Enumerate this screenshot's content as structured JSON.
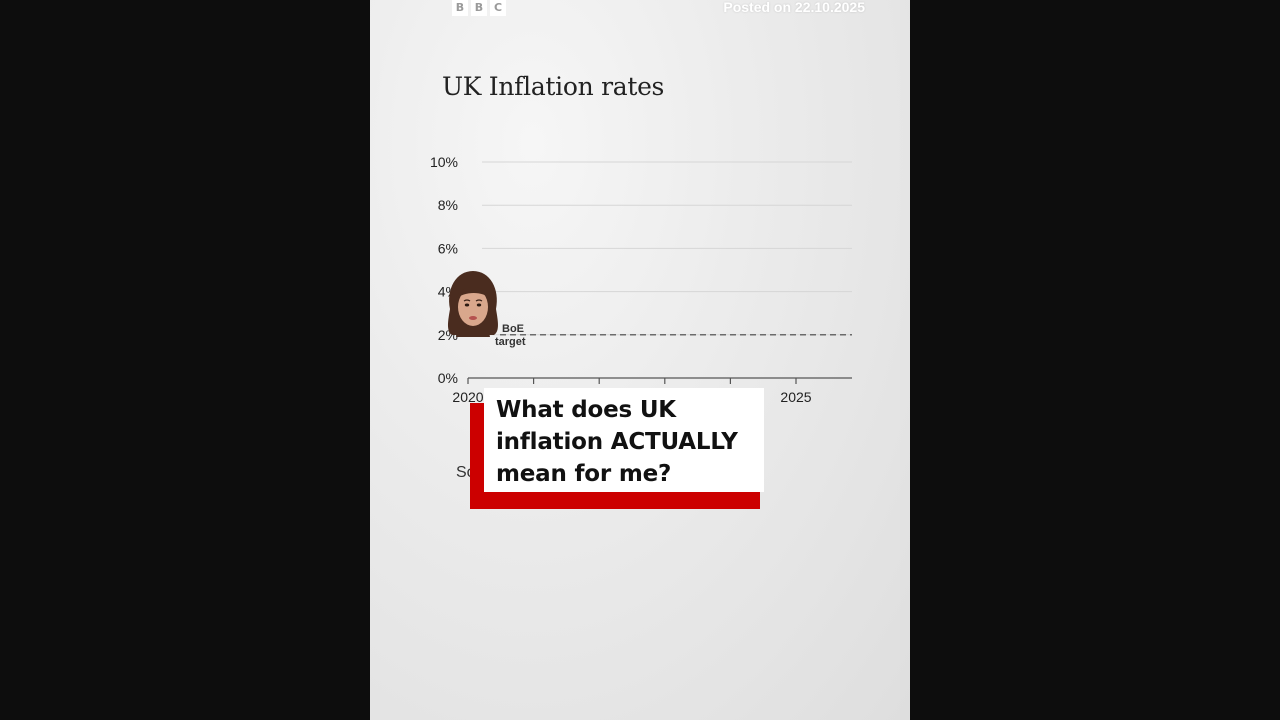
{
  "brand": {
    "logo_letters": [
      "B",
      "B",
      "C"
    ]
  },
  "header": {
    "posted_text": "Posted on 22.10.2025"
  },
  "chart_data": {
    "type": "line",
    "title": "UK Inflation rates",
    "y_ticks": [
      "10%",
      "8%",
      "6%",
      "4%",
      "2%",
      "0%"
    ],
    "y_tick_values": [
      10,
      8,
      6,
      4,
      2,
      0
    ],
    "ylim": [
      0,
      10
    ],
    "x_ticks": [
      "2020",
      "",
      "",
      "",
      "",
      "2025"
    ],
    "x_tick_values": [
      2020,
      2021,
      2022,
      2023,
      2024,
      2025
    ],
    "xlim": [
      2020,
      2025.8
    ],
    "grid": true,
    "reference_line": {
      "value": 2,
      "label_line1": "BoE",
      "label_line2": "target",
      "style": "dashed"
    },
    "series": []
  },
  "caption": {
    "text": "What does UK inflation ACTUALLY mean for me?",
    "accent_color": "#cc0000"
  },
  "source_peek": "So"
}
